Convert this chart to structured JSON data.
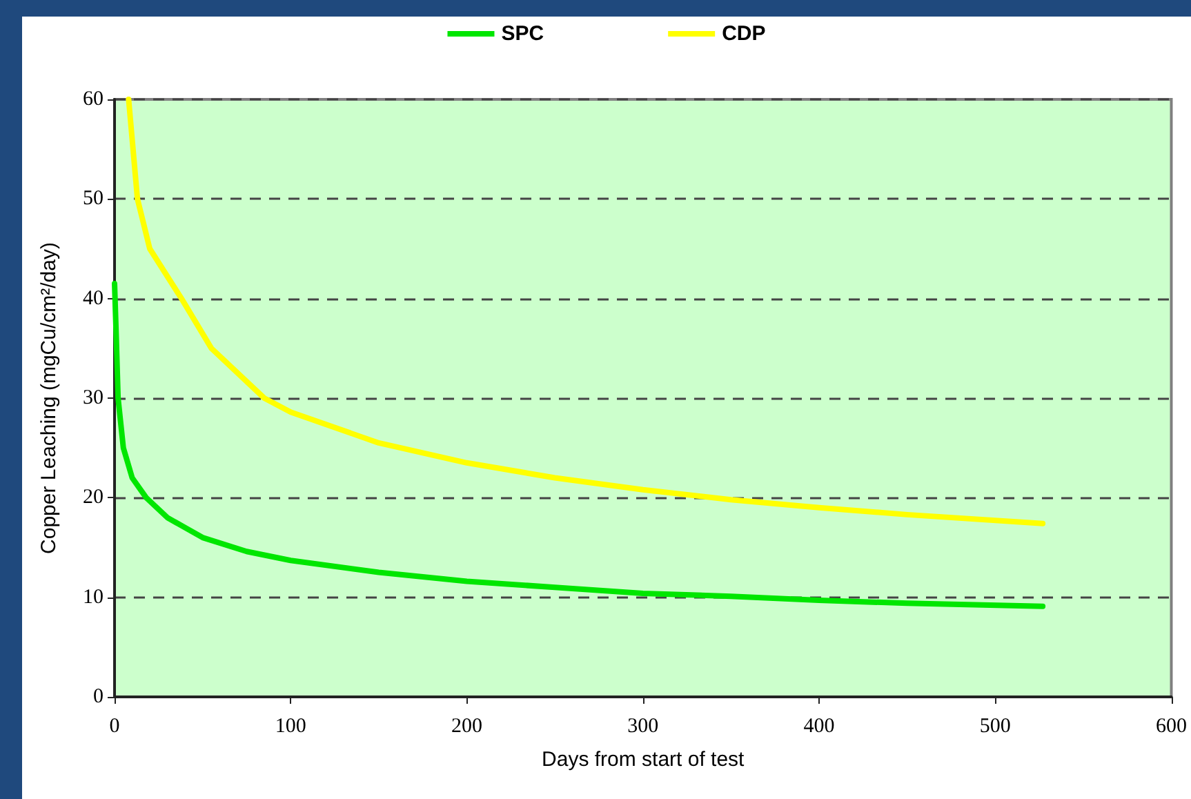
{
  "chart_data": {
    "type": "line",
    "xlabel": "Days from start of test",
    "ylabel": "Copper Leaching (mgCu/cm²/day)",
    "xlim": [
      0,
      600
    ],
    "xticks": [
      0,
      100,
      200,
      300,
      400,
      500,
      600
    ],
    "ylim": [
      0,
      60
    ],
    "yticks": [
      0,
      10,
      20,
      30,
      40,
      50,
      60
    ],
    "grid": "y",
    "legend": "top",
    "marker": "none",
    "line_style": "solid",
    "series": [
      {
        "name": "SPC",
        "color": "#00e600",
        "x": [
          0,
          1,
          2,
          5,
          10,
          18,
          30,
          50,
          75,
          100,
          150,
          200,
          250,
          300,
          350,
          400,
          450,
          527
        ],
        "values": [
          41.5,
          36,
          30,
          25,
          22,
          20,
          18,
          16,
          14.6,
          13.7,
          12.5,
          11.6,
          11,
          10.4,
          10.1,
          9.7,
          9.4,
          9.1
        ]
      },
      {
        "name": "CDP",
        "color": "#ffff00",
        "x": [
          8,
          10,
          13,
          20,
          38,
          55,
          85,
          100,
          150,
          200,
          250,
          300,
          350,
          400,
          450,
          527
        ],
        "values": [
          60,
          56,
          50,
          45,
          40,
          35,
          30,
          28.6,
          25.5,
          23.5,
          22,
          20.8,
          19.8,
          19,
          18.3,
          17.4
        ]
      }
    ]
  }
}
